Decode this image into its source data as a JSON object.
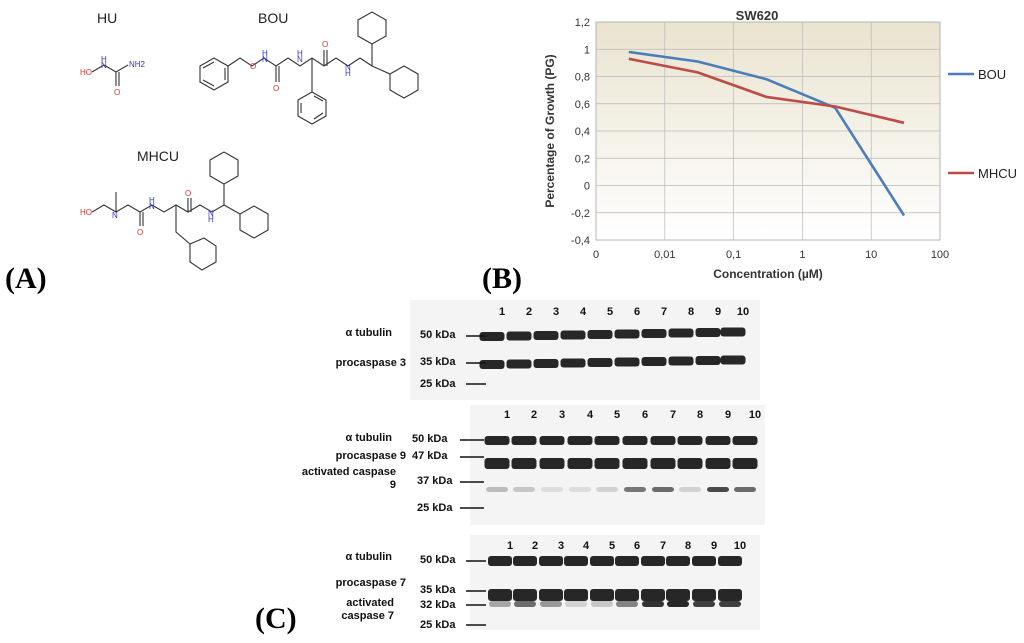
{
  "panels": {
    "a": "(A)",
    "b": "(B)",
    "c": "(C)"
  },
  "molecules": {
    "hu": "HU",
    "bou": "BOU",
    "mhcu": "MHCU",
    "atoms": {
      "nh2": "NH2",
      "h": "H",
      "n": "N",
      "o": "O",
      "ho": "HO"
    }
  },
  "chart_data": {
    "type": "line",
    "title": "SW620",
    "xlabel": "Concentration (µM)",
    "ylabel": "Percentage of Growth (PG)",
    "x_scale": "log",
    "x_tick_labels": [
      "0",
      "0,01",
      "0,1",
      "1",
      "10",
      "100"
    ],
    "y_tick_labels": [
      "1,2",
      "1",
      "0,8",
      "0,6",
      "0,4",
      "0,2",
      "0",
      "-0,2",
      "-0,4"
    ],
    "ylim": [
      -0.4,
      1.2
    ],
    "grid": true,
    "legend_position": "right",
    "series": [
      {
        "name": "BOU",
        "color": "#4a7ebb",
        "x": [
          0.003,
          0.03,
          0.3,
          3,
          30
        ],
        "y": [
          0.98,
          0.91,
          0.78,
          0.57,
          -0.22
        ]
      },
      {
        "name": "MHCU",
        "color": "#be4b48",
        "x": [
          0.003,
          0.03,
          0.3,
          3,
          30
        ],
        "y": [
          0.93,
          0.83,
          0.65,
          0.58,
          0.46
        ]
      }
    ]
  },
  "blots": [
    {
      "lanes": [
        "1",
        "2",
        "3",
        "4",
        "5",
        "6",
        "7",
        "8",
        "9",
        "10"
      ],
      "labels": [
        "α tubulin",
        "procaspase 3"
      ],
      "markers": [
        "50 kDa",
        "35 kDa",
        "25 kDa"
      ]
    },
    {
      "lanes": [
        "1",
        "2",
        "3",
        "4",
        "5",
        "6",
        "7",
        "8",
        "9",
        "10"
      ],
      "labels": [
        "α tubulin",
        "procaspase 9",
        "activated caspase 9"
      ],
      "markers": [
        "50 kDa",
        "47 kDa",
        "37 kDa",
        "25 kDa"
      ]
    },
    {
      "lanes": [
        "1",
        "2",
        "3",
        "4",
        "5",
        "6",
        "7",
        "8",
        "9",
        "10"
      ],
      "labels": [
        "α tubulin",
        "procaspase 7",
        "activated caspase 7"
      ],
      "markers": [
        "50 kDa",
        "35 kDa",
        "32 kDa",
        "25 kDa"
      ]
    }
  ]
}
